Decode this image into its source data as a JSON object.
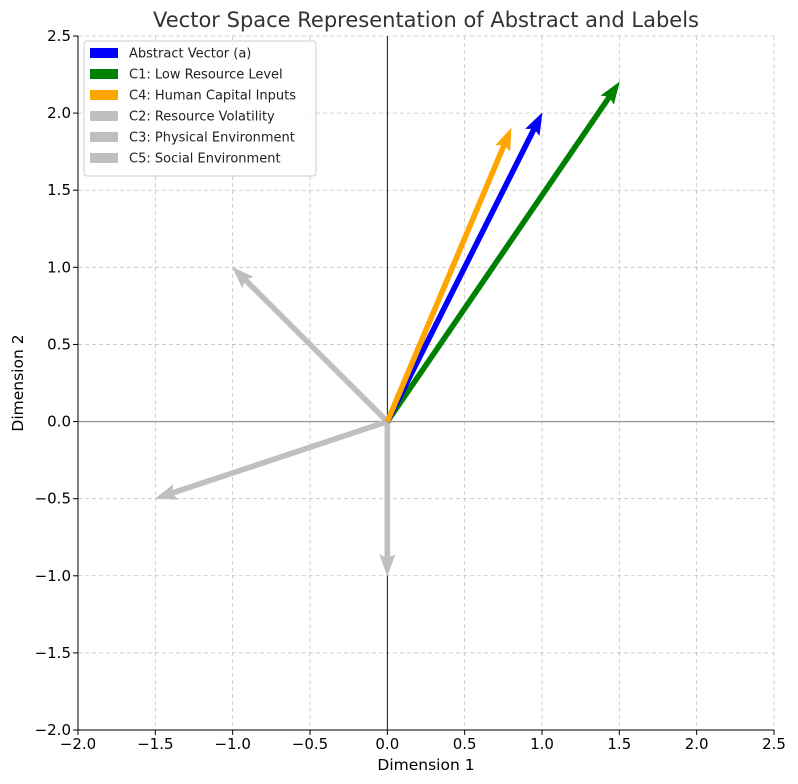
{
  "chart_data": {
    "type": "vector",
    "title": "Vector Space Representation of Abstract and Labels",
    "xlabel": "Dimension 1",
    "ylabel": "Dimension 2",
    "xlim": [
      -2.0,
      2.5
    ],
    "ylim": [
      -2.0,
      2.5
    ],
    "xticks": [
      "−2.0",
      "−1.5",
      "−1.0",
      "−0.5",
      "0.0",
      "0.5",
      "1.0",
      "1.5",
      "2.0",
      "2.5"
    ],
    "yticks": [
      "−2.0",
      "−1.5",
      "−1.0",
      "−0.5",
      "0.0",
      "0.5",
      "1.0",
      "1.5",
      "2.0",
      "2.5"
    ],
    "grid": true,
    "legend_position": "upper-left",
    "origin": [
      0,
      0
    ],
    "series": [
      {
        "name": "Abstract Vector (a)",
        "color": "#0000ff",
        "x": 1.0,
        "y": 2.0
      },
      {
        "name": "C1: Low Resource Level",
        "color": "#008000",
        "x": 1.5,
        "y": 2.2
      },
      {
        "name": "C4: Human Capital Inputs",
        "color": "#ffa500",
        "x": 0.8,
        "y": 1.9
      },
      {
        "name": "C2: Resource Volatility",
        "color": "#bfbfbf",
        "x": -1.0,
        "y": 1.0
      },
      {
        "name": "C3: Physical Environment",
        "color": "#bfbfbf",
        "x": -1.5,
        "y": -0.5
      },
      {
        "name": "C5: Social Environment",
        "color": "#bfbfbf",
        "x": 0.0,
        "y": -1.0
      }
    ],
    "draw_order": [
      3,
      4,
      5,
      1,
      0,
      2
    ]
  }
}
